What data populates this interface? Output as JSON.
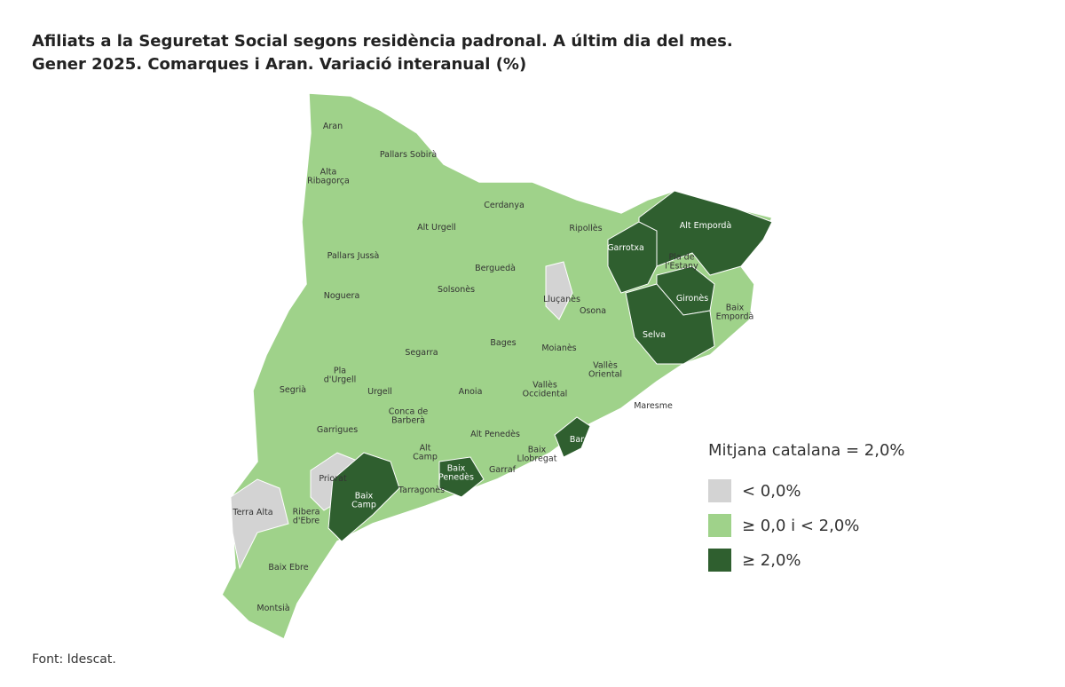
{
  "header": {
    "title": [
      "Afiliats a la Seguretat Social segons residència padronal. A últim dia del mes.",
      "Gener 2025. Comarques i Aran. Variació interanual (%)"
    ]
  },
  "map": {
    "regions": [
      {
        "label": "Aran",
        "color": "#9fd28a"
      },
      {
        "label": "Pallars Sobirà",
        "color": "#9fd28a"
      },
      {
        "label": "Alta\nRibagorça",
        "color": "#9fd28a"
      },
      {
        "label": "Cerdanya",
        "color": "#9fd28a"
      },
      {
        "label": "Alt Urgell",
        "color": "#9fd28a"
      },
      {
        "label": "Ripollès",
        "color": "#9fd28a"
      },
      {
        "label": "Alt Empordà",
        "color": "#2f5f2f"
      },
      {
        "label": "Garrotxa",
        "color": "#2f5f2f"
      },
      {
        "label": "Pla de\nl'Estany",
        "color": "#9fd28a"
      },
      {
        "label": "Pallars Jussà",
        "color": "#9fd28a"
      },
      {
        "label": "Berguedà",
        "color": "#9fd28a"
      },
      {
        "label": "Solsonès",
        "color": "#9fd28a"
      },
      {
        "label": "Lluçanès",
        "color": "#d3d3d3"
      },
      {
        "label": "Gironès",
        "color": "#2f5f2f"
      },
      {
        "label": "Baix\nEmpordà",
        "color": "#9fd28a"
      },
      {
        "label": "Osona",
        "color": "#9fd28a"
      },
      {
        "label": "Noguera",
        "color": "#9fd28a"
      },
      {
        "label": "Selva",
        "color": "#2f5f2f"
      },
      {
        "label": "Bages",
        "color": "#9fd28a"
      },
      {
        "label": "Moianès",
        "color": "#9fd28a"
      },
      {
        "label": "Segarra",
        "color": "#9fd28a"
      },
      {
        "label": "Pla\nd'Urgell",
        "color": "#9fd28a"
      },
      {
        "label": "Vallès\nOriental",
        "color": "#9fd28a"
      },
      {
        "label": "Urgell",
        "color": "#9fd28a"
      },
      {
        "label": "Segrià",
        "color": "#9fd28a"
      },
      {
        "label": "Anoia",
        "color": "#9fd28a"
      },
      {
        "label": "Vallès\nOccidental",
        "color": "#9fd28a"
      },
      {
        "label": "Maresme",
        "color": "#9fd28a"
      },
      {
        "label": "Conca de\nBarberà",
        "color": "#9fd28a"
      },
      {
        "label": "Garrigues",
        "color": "#9fd28a"
      },
      {
        "label": "Alt Penedès",
        "color": "#9fd28a"
      },
      {
        "label": "Barcelonès",
        "color": "#2f5f2f"
      },
      {
        "label": "Alt\nCamp",
        "color": "#9fd28a"
      },
      {
        "label": "Baix\nLlobregat",
        "color": "#9fd28a"
      },
      {
        "label": "Priorat",
        "color": "#d3d3d3"
      },
      {
        "label": "Baix\nPenedès",
        "color": "#2f5f2f"
      },
      {
        "label": "Garraf",
        "color": "#9fd28a"
      },
      {
        "label": "Baix\nCamp",
        "color": "#2f5f2f"
      },
      {
        "label": "Tarragonès",
        "color": "#9fd28a"
      },
      {
        "label": "Terra Alta",
        "color": "#d3d3d3"
      },
      {
        "label": "Ribera\nd'Ebre",
        "color": "#9fd28a"
      },
      {
        "label": "Baix Ebre",
        "color": "#9fd28a"
      },
      {
        "label": "Montsià",
        "color": "#9fd28a"
      }
    ]
  },
  "legend": {
    "title": "Mitjana catalana = 2,0%",
    "items": [
      {
        "label": "< 0,0%",
        "color": "#d3d3d3"
      },
      {
        "label": "≥ 0,0 i < 2,0%",
        "color": "#9fd28a"
      },
      {
        "label": "≥ 2,0%",
        "color": "#2f5f2f"
      }
    ]
  },
  "footer": {
    "source": "Font: Idescat."
  }
}
